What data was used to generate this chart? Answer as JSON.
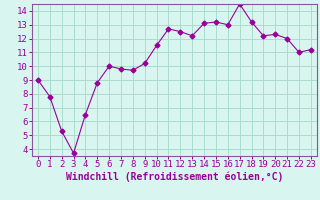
{
  "x": [
    0,
    1,
    2,
    3,
    4,
    5,
    6,
    7,
    8,
    9,
    10,
    11,
    12,
    13,
    14,
    15,
    16,
    17,
    18,
    19,
    20,
    21,
    22,
    23
  ],
  "y": [
    9.0,
    7.8,
    5.3,
    3.7,
    6.5,
    8.8,
    10.0,
    9.8,
    9.7,
    10.2,
    11.5,
    12.7,
    12.5,
    12.2,
    13.1,
    13.2,
    13.0,
    14.5,
    13.2,
    12.2,
    12.3,
    12.0,
    11.0,
    11.2
  ],
  "line_color": "#990099",
  "marker": "D",
  "marker_size": 2.5,
  "bg_color": "#d8f5f0",
  "grid_color": "#aaddcc",
  "xlabel": "Windchill (Refroidissement éolien,°C)",
  "ylabel": "",
  "xlim": [
    -0.5,
    23.5
  ],
  "ylim": [
    3.5,
    14.5
  ],
  "yticks": [
    4,
    5,
    6,
    7,
    8,
    9,
    10,
    11,
    12,
    13,
    14
  ],
  "xticks": [
    0,
    1,
    2,
    3,
    4,
    5,
    6,
    7,
    8,
    9,
    10,
    11,
    12,
    13,
    14,
    15,
    16,
    17,
    18,
    19,
    20,
    21,
    22,
    23
  ],
  "xlabel_fontsize": 7.0,
  "tick_fontsize": 6.5,
  "border_color": "#885599"
}
